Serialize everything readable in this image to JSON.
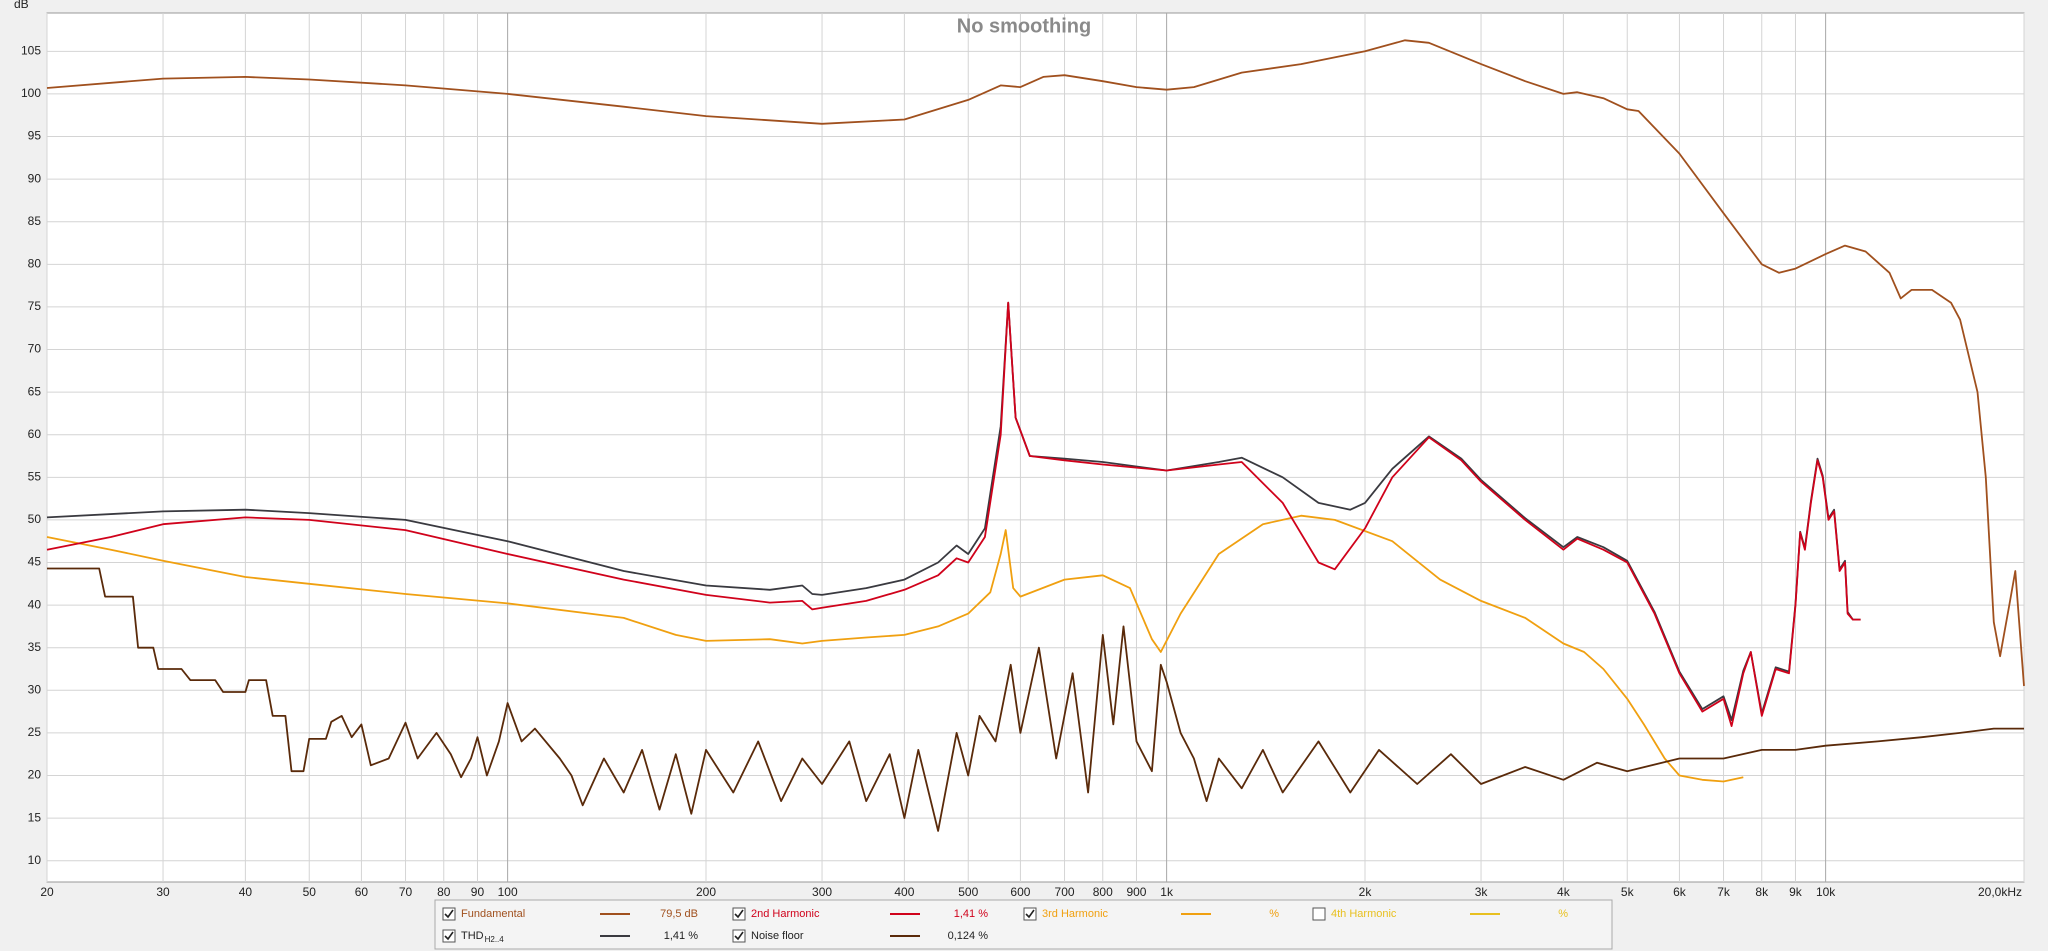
{
  "chart_data": {
    "type": "line",
    "title": "No smoothing",
    "y_label": "dB",
    "xscale": "log",
    "grid": true,
    "xlim": [
      20,
      20000
    ],
    "ylim": [
      7.5,
      109.5
    ],
    "xticks": [
      20,
      30,
      40,
      50,
      60,
      70,
      80,
      90,
      100,
      200,
      300,
      400,
      500,
      600,
      700,
      800,
      900,
      {
        "value": 1000,
        "label": "1k"
      },
      {
        "value": 2000,
        "label": "2k"
      },
      {
        "value": 3000,
        "label": "3k"
      },
      {
        "value": 4000,
        "label": "4k"
      },
      {
        "value": 5000,
        "label": "5k"
      },
      {
        "value": 6000,
        "label": "6k"
      },
      {
        "value": 7000,
        "label": "7k"
      },
      {
        "value": 8000,
        "label": "8k"
      },
      {
        "value": 9000,
        "label": "9k"
      },
      {
        "value": 10000,
        "label": "10k"
      },
      {
        "value": 20000,
        "label": "20,0kHz"
      }
    ],
    "yticks": [
      10,
      15,
      20,
      25,
      30,
      35,
      40,
      45,
      50,
      55,
      60,
      65,
      70,
      75,
      80,
      85,
      90,
      95,
      100,
      105
    ],
    "series": [
      {
        "name": "Fundamental",
        "color": "#a0501e",
        "reading": "79,5 dB",
        "checked": true,
        "x": [
          20,
          30,
          40,
          50,
          70,
          100,
          150,
          200,
          300,
          400,
          500,
          560,
          600,
          650,
          700,
          800,
          900,
          1000,
          1100,
          1300,
          1600,
          2000,
          2300,
          2500,
          3000,
          3500,
          4000,
          4200,
          4600,
          5000,
          5200,
          6000,
          7000,
          8000,
          8500,
          9000,
          10000,
          10700,
          11500,
          12500,
          13000,
          13500,
          14500,
          15500,
          16000,
          17000,
          17500,
          18000,
          18400,
          19000,
          19400,
          19800,
          20000
        ],
        "values": [
          100.7,
          101.8,
          102,
          101.7,
          101,
          100,
          98.5,
          97.4,
          96.5,
          97,
          99.3,
          101,
          100.8,
          102,
          102.2,
          101.5,
          100.8,
          100.5,
          100.8,
          102.5,
          103.5,
          105,
          106.3,
          106,
          103.5,
          101.5,
          100,
          100.2,
          99.5,
          98.2,
          98,
          93,
          86,
          80,
          79,
          79.5,
          81.2,
          82.2,
          81.5,
          79,
          76,
          77,
          77,
          75.5,
          73.5,
          65,
          55,
          38,
          34,
          40,
          44,
          35,
          30.5
        ]
      },
      {
        "name": "2nd Harmonic",
        "color": "#d0021b",
        "reading": "1,41 %",
        "checked": true,
        "x": [
          20,
          25,
          30,
          40,
          50,
          70,
          100,
          150,
          200,
          250,
          280,
          290,
          300,
          350,
          400,
          450,
          480,
          500,
          530,
          560,
          575,
          590,
          620,
          700,
          800,
          1000,
          1200,
          1300,
          1500,
          1700,
          1800,
          2000,
          2200,
          2500,
          2800,
          3000,
          3500,
          4000,
          4200,
          4600,
          5000,
          5500,
          6000,
          6500,
          7000,
          7200,
          7500,
          7700,
          8000,
          8400,
          8800,
          9000,
          9150,
          9300,
          9500,
          9720,
          9900,
          10100,
          10300,
          10500,
          10700,
          10800,
          11000,
          11300
        ],
        "values": [
          46.5,
          48,
          49.5,
          50.3,
          50,
          48.8,
          46,
          43,
          41.2,
          40.3,
          40.5,
          39.5,
          39.7,
          40.5,
          41.8,
          43.5,
          45.5,
          45,
          48,
          60,
          75.5,
          62,
          57.5,
          57,
          56.5,
          55.8,
          56.5,
          56.8,
          52,
          45,
          44.2,
          49,
          55,
          59.7,
          57,
          54.5,
          50,
          46.5,
          47.8,
          46.5,
          45,
          39,
          32,
          27.5,
          29,
          25.8,
          32,
          34.5,
          27,
          32.5,
          32,
          40,
          48.5,
          46.5,
          52,
          57,
          55,
          50,
          51,
          44,
          45,
          39,
          38.3,
          38.3
        ]
      },
      {
        "name": "3rd Harmonic",
        "color": "#f0a010",
        "reading": "%",
        "checked": true,
        "x": [
          20,
          25,
          30,
          40,
          50,
          70,
          100,
          150,
          180,
          200,
          250,
          280,
          300,
          350,
          400,
          450,
          500,
          540,
          560,
          570,
          585,
          600,
          700,
          800,
          880,
          950,
          980,
          1050,
          1200,
          1400,
          1600,
          1800,
          2200,
          2600,
          3000,
          3500,
          4000,
          4300,
          4600,
          5000,
          5300,
          5700,
          6000,
          6500,
          7000,
          7500
        ],
        "values": [
          48,
          46.5,
          45.2,
          43.3,
          42.5,
          41.3,
          40.2,
          38.5,
          36.5,
          35.8,
          36,
          35.5,
          35.8,
          36.2,
          36.5,
          37.5,
          39,
          41.5,
          46,
          48.8,
          42,
          41,
          43,
          43.5,
          42,
          36,
          34.5,
          39,
          46,
          49.5,
          50.5,
          50,
          47.5,
          43,
          40.5,
          38.5,
          35.5,
          34.5,
          32.5,
          29,
          26,
          22,
          20,
          19.5,
          19.3,
          19.8
        ]
      },
      {
        "name": "4th Harmonic",
        "color": "#e8c020",
        "reading": "%",
        "checked": false,
        "x": [],
        "values": []
      },
      {
        "name": "THD",
        "name_sub": "H2..4",
        "color": "#3a3a40",
        "reading": "1,41 %",
        "checked": true,
        "x": [
          20,
          30,
          40,
          50,
          70,
          100,
          150,
          200,
          250,
          280,
          290,
          300,
          350,
          400,
          450,
          480,
          500,
          530,
          560,
          575,
          590,
          620,
          700,
          800,
          1000,
          1200,
          1300,
          1500,
          1700,
          1900,
          2000,
          2200,
          2500,
          2800,
          3000,
          3500,
          4000,
          4200,
          4600,
          5000,
          5500,
          6000,
          6500,
          7000,
          7200,
          7500,
          7700,
          8000,
          8400,
          8800,
          9000,
          9150,
          9300,
          9500,
          9720,
          9900,
          10100,
          10300,
          10500,
          10700,
          10800,
          11000,
          11300
        ],
        "values": [
          50.3,
          51,
          51.2,
          50.8,
          50,
          47.5,
          44,
          42.3,
          41.8,
          42.3,
          41.3,
          41.2,
          42,
          43,
          45,
          47,
          46,
          49,
          61,
          75.5,
          62,
          57.5,
          57.2,
          56.8,
          55.8,
          56.8,
          57.3,
          55,
          52,
          51.2,
          52,
          56,
          59.8,
          57.2,
          54.7,
          50.2,
          46.8,
          48,
          46.8,
          45.2,
          39.2,
          32.2,
          27.8,
          29.3,
          26.5,
          32.3,
          34.5,
          27.3,
          32.7,
          32.2,
          40.2,
          48.6,
          46.7,
          52.2,
          57.2,
          55.2,
          50.2,
          51.2,
          44.2,
          45.2,
          39.2,
          38.3,
          38.3
        ]
      },
      {
        "name": "Noise floor",
        "color": "#5a2a0a",
        "reading": "0,124 %",
        "checked": true,
        "x": [
          20,
          24,
          24.5,
          27,
          27.5,
          29,
          29.5,
          32,
          33,
          36,
          37,
          40,
          40.5,
          43,
          44,
          46,
          47,
          49,
          50,
          53,
          54,
          56,
          58,
          60,
          62,
          66,
          70,
          73,
          78,
          82,
          85,
          88,
          90,
          93,
          97,
          100,
          105,
          110,
          120,
          125,
          130,
          140,
          150,
          160,
          170,
          180,
          190,
          200,
          220,
          240,
          260,
          280,
          300,
          330,
          350,
          380,
          400,
          420,
          450,
          480,
          500,
          520,
          550,
          580,
          600,
          640,
          680,
          720,
          760,
          800,
          830,
          860,
          900,
          950,
          980,
          1000,
          1050,
          1100,
          1150,
          1200,
          1300,
          1400,
          1500,
          1700,
          1900,
          2100,
          2400,
          2700,
          3000,
          3500,
          4000,
          4500,
          5000,
          6000,
          7000,
          8000,
          9000,
          10000,
          12000,
          14000,
          16000,
          18000,
          20000
        ],
        "values": [
          44.3,
          44.3,
          41,
          41,
          35,
          35,
          32.5,
          32.5,
          31.2,
          31.2,
          29.8,
          29.8,
          31.2,
          31.2,
          27,
          27,
          20.5,
          20.5,
          24.3,
          24.3,
          26.3,
          27,
          24.5,
          26,
          21.2,
          22,
          26.2,
          22,
          25,
          22.5,
          19.8,
          22,
          24.5,
          20,
          24,
          28.5,
          24,
          25.5,
          22,
          20,
          16.5,
          22,
          18,
          23,
          16,
          22.5,
          15.5,
          23,
          18,
          24,
          17,
          22,
          19,
          24,
          17,
          22.5,
          15,
          23,
          13.5,
          25,
          20,
          27,
          24,
          33,
          25,
          35,
          22,
          32,
          18,
          36.5,
          26,
          37.5,
          24,
          20.5,
          33,
          31,
          25,
          22,
          17,
          22,
          18.5,
          23,
          18,
          24,
          18,
          23,
          19,
          22.5,
          19,
          21,
          19.5,
          21.5,
          20.5,
          22,
          22,
          23,
          23,
          23.5,
          24,
          24.5,
          25,
          25.5,
          25.5
        ]
      }
    ]
  }
}
